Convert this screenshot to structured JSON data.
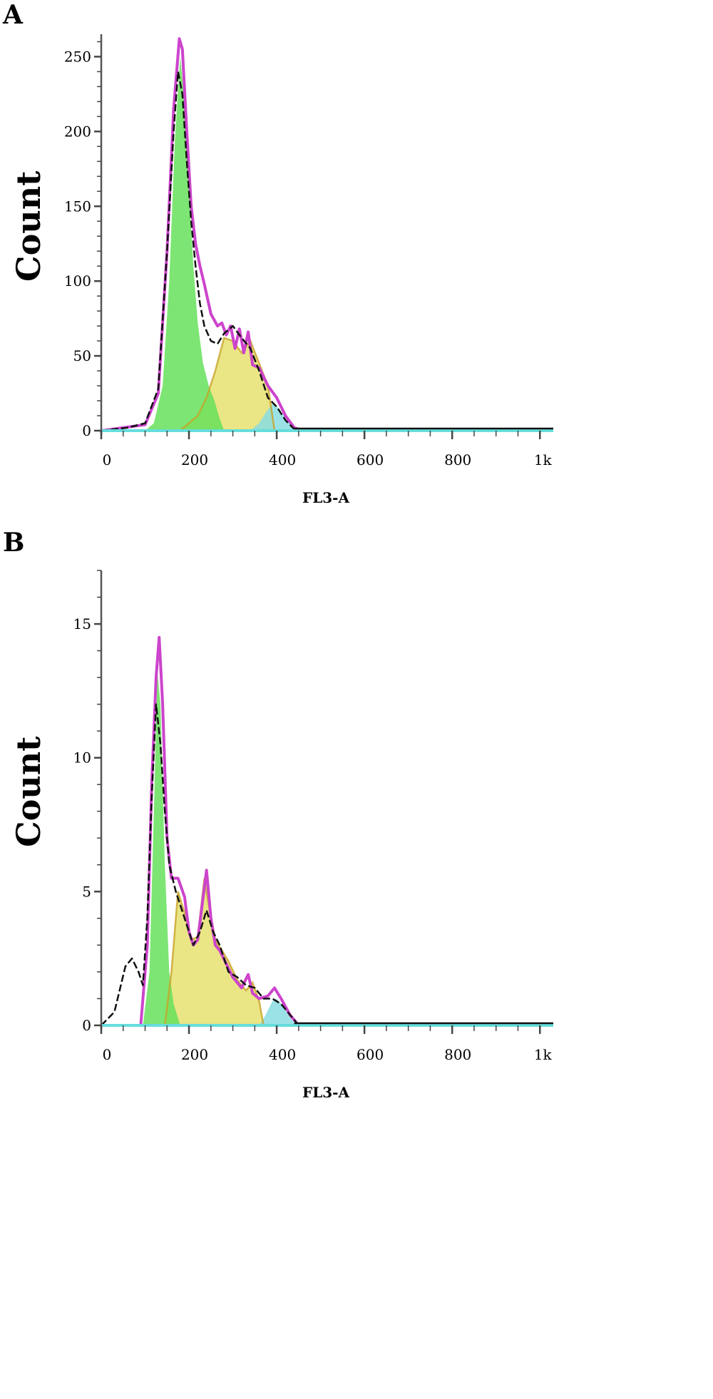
{
  "chart_data": [
    {
      "panel": "A",
      "type": "area",
      "xlabel": "FL3-A",
      "ylabel": "Count",
      "xlim": [
        0,
        1024
      ],
      "ylim": [
        0,
        265
      ],
      "x_ticks": [
        0,
        200,
        400,
        600,
        800,
        1000
      ],
      "x_tick_labels": [
        "0",
        "200",
        "400",
        "600",
        "800",
        "1k"
      ],
      "y_ticks": [
        0,
        50,
        100,
        150,
        200,
        250
      ],
      "y_tick_labels": [
        "0",
        "50",
        "100",
        "150",
        "200",
        "250"
      ],
      "colors": {
        "total": "#cc44cc",
        "g1": "#66e05a",
        "s": "#e6e070",
        "g2": "#88dde0",
        "data": "#111111",
        "overlap": "#c8a428"
      },
      "series": [
        {
          "key": "data",
          "x": [
            0,
            60,
            100,
            130,
            150,
            165,
            175,
            185,
            195,
            205,
            215,
            225,
            235,
            250,
            265,
            280,
            300,
            320,
            340,
            360,
            380,
            400,
            420,
            440,
            460,
            1024
          ],
          "values": [
            0,
            2,
            5,
            28,
            120,
            200,
            240,
            225,
            180,
            140,
            110,
            85,
            70,
            60,
            58,
            65,
            70,
            62,
            55,
            40,
            22,
            16,
            7,
            1,
            0,
            0
          ]
        },
        {
          "key": "total",
          "x": [
            0,
            100,
            130,
            150,
            165,
            178,
            185,
            195,
            205,
            215,
            225,
            235,
            250,
            265,
            275,
            285,
            295,
            305,
            315,
            325,
            335,
            345,
            360,
            380,
            400,
            420,
            440,
            460,
            1024
          ],
          "values": [
            0,
            4,
            25,
            120,
            215,
            262,
            255,
            200,
            150,
            125,
            110,
            98,
            78,
            70,
            72,
            64,
            70,
            55,
            68,
            52,
            66,
            44,
            42,
            30,
            22,
            10,
            2,
            0,
            0
          ]
        },
        {
          "key": "g1",
          "x": [
            100,
            120,
            140,
            155,
            168,
            180,
            190,
            200,
            210,
            220,
            232,
            245,
            258,
            270,
            280
          ],
          "values": [
            0,
            5,
            30,
            100,
            195,
            250,
            220,
            160,
            110,
            72,
            45,
            30,
            20,
            8,
            0
          ]
        },
        {
          "key": "s",
          "x": [
            180,
            200,
            220,
            240,
            260,
            280,
            300,
            320,
            340,
            360,
            380,
            395
          ],
          "values": [
            0,
            5,
            10,
            22,
            40,
            62,
            60,
            52,
            60,
            45,
            30,
            0
          ]
        },
        {
          "key": "g2",
          "x": [
            340,
            360,
            375,
            390,
            405,
            420,
            440,
            455
          ],
          "values": [
            0,
            5,
            12,
            18,
            15,
            8,
            2,
            0
          ]
        }
      ]
    },
    {
      "panel": "B",
      "type": "area",
      "xlabel": "FL3-A",
      "ylabel": "Count",
      "xlim": [
        0,
        1024
      ],
      "ylim": [
        0,
        17
      ],
      "x_ticks": [
        0,
        200,
        400,
        600,
        800,
        1000
      ],
      "x_tick_labels": [
        "0",
        "200",
        "400",
        "600",
        "800",
        "1k"
      ],
      "y_ticks": [
        0,
        5,
        10,
        15
      ],
      "y_tick_labels": [
        "0",
        "5",
        "10",
        "15"
      ],
      "colors": {
        "total": "#cc44cc",
        "g1": "#66e05a",
        "s": "#e6e070",
        "g2": "#88dde0",
        "data": "#111111",
        "overlap": "#c8a428"
      },
      "series": [
        {
          "key": "data",
          "x": [
            0,
            30,
            55,
            70,
            85,
            95,
            105,
            115,
            125,
            135,
            145,
            155,
            170,
            190,
            210,
            225,
            240,
            255,
            270,
            290,
            310,
            330,
            350,
            370,
            390,
            410,
            430,
            450,
            1024
          ],
          "values": [
            0,
            0.5,
            2.2,
            2.5,
            2.0,
            1.5,
            4.0,
            8.5,
            12.0,
            10.5,
            8.0,
            6.0,
            5.0,
            4.0,
            3.0,
            3.5,
            4.3,
            3.5,
            3.0,
            2.0,
            1.8,
            1.5,
            1.4,
            1.0,
            1.0,
            0.8,
            0.4,
            0,
            0
          ]
        },
        {
          "key": "total",
          "x": [
            0,
            90,
            105,
            115,
            125,
            132,
            140,
            150,
            160,
            175,
            190,
            200,
            210,
            220,
            230,
            240,
            250,
            260,
            270,
            285,
            300,
            320,
            335,
            345,
            360,
            380,
            395,
            410,
            430,
            450,
            1024
          ],
          "values": [
            0,
            0,
            3,
            9,
            13,
            14.5,
            12,
            7,
            5.5,
            5.5,
            4.8,
            3.5,
            3.0,
            3.2,
            4.5,
            5.8,
            4.0,
            3.0,
            2.8,
            2.3,
            1.8,
            1.4,
            1.9,
            1.2,
            1.0,
            1.1,
            1.4,
            1.0,
            0.4,
            0,
            0
          ]
        },
        {
          "key": "g1",
          "x": [
            95,
            110,
            120,
            128,
            135,
            145,
            155,
            165,
            180
          ],
          "values": [
            0,
            2,
            8,
            13.2,
            12,
            6,
            2,
            0.8,
            0
          ]
        },
        {
          "key": "s",
          "x": [
            145,
            160,
            175,
            190,
            205,
            220,
            235,
            245,
            260,
            275,
            290,
            310,
            330,
            345,
            360,
            370
          ],
          "values": [
            0,
            2,
            5,
            4.2,
            3.2,
            3.3,
            5.5,
            4.5,
            3.2,
            2.8,
            2.4,
            1.7,
            1.3,
            1.6,
            0.9,
            0
          ]
        },
        {
          "key": "g2",
          "x": [
            360,
            375,
            390,
            400,
            415,
            430,
            445
          ],
          "values": [
            0,
            0.4,
            0.9,
            1.0,
            0.7,
            0.3,
            0
          ]
        }
      ]
    }
  ],
  "panels": {
    "A": {
      "letter": "A",
      "ylabel": "Count",
      "xlabel": "FL3-A"
    },
    "B": {
      "letter": "B",
      "ylabel": "Count",
      "xlabel": "FL3-A"
    }
  }
}
